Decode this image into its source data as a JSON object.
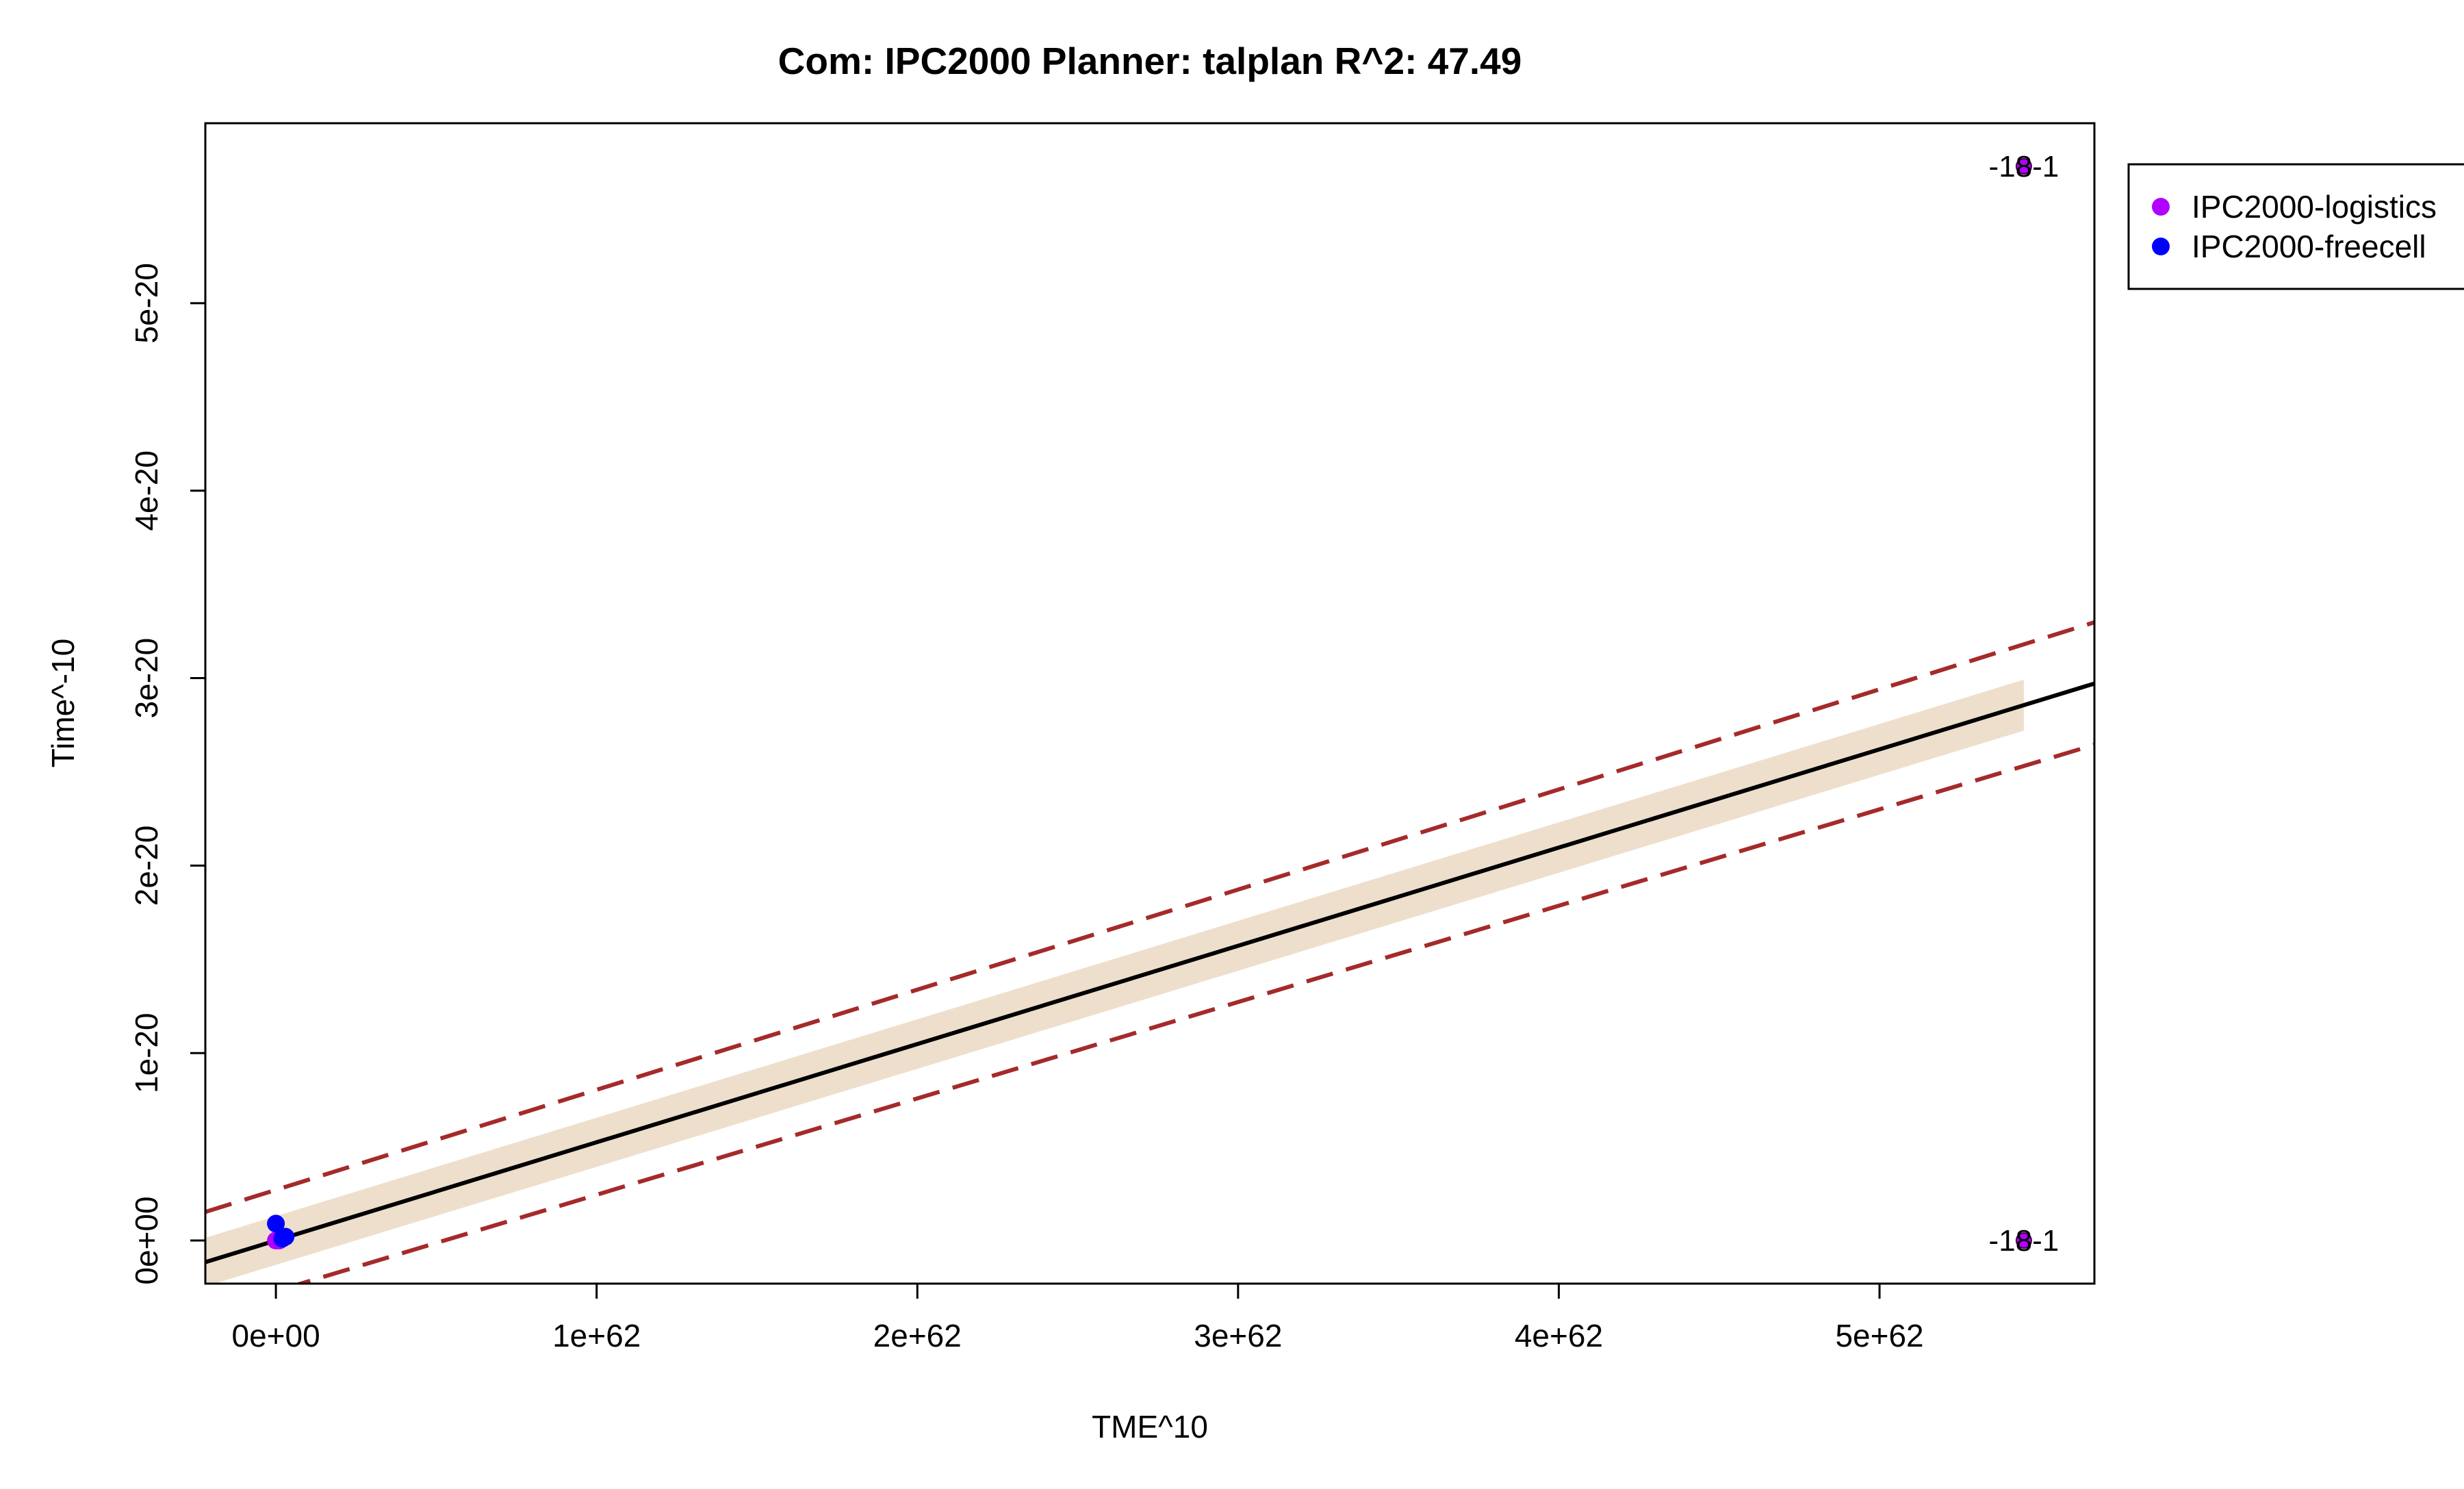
{
  "chart_data": {
    "type": "scatter",
    "title": "Com: IPC2000 Planner: talplan R^2: 47.49",
    "xlabel": "TME^10",
    "ylabel": "Time^-10",
    "xlim": [
      -2.2e+61,
      5.67e+62
    ],
    "ylim": [
      -2.3e-21,
      5.96e-20
    ],
    "x_ticks": [
      0,
      1e+62,
      2e+62,
      3e+62,
      4e+62,
      5e+62
    ],
    "x_tick_labels": [
      "0e+00",
      "1e+62",
      "2e+62",
      "3e+62",
      "4e+62",
      "5e+62"
    ],
    "y_ticks": [
      0,
      1e-20,
      2e-20,
      3e-20,
      4e-20,
      5e-20
    ],
    "y_tick_labels": [
      "0e+00",
      "1e-20",
      "2e-20",
      "3e-20",
      "4e-20",
      "5e-20"
    ],
    "series": [
      {
        "name": "IPC2000-logistics",
        "color": "#b000ff",
        "points": [
          {
            "x": 0,
            "y": 0
          },
          {
            "x": 1e+60,
            "y": 0
          },
          {
            "x": 5.45e+62,
            "y": 5.73e-20,
            "label": "-18-1"
          },
          {
            "x": 5.45e+62,
            "y": 0,
            "label": "-18-1"
          }
        ]
      },
      {
        "name": "IPC2000-freecell",
        "color": "#0000ff",
        "points": [
          {
            "x": 0,
            "y": 9e-22
          },
          {
            "x": 3e+60,
            "y": 2e-22
          },
          {
            "x": 2e+60,
            "y": 1e-22
          }
        ]
      }
    ],
    "fit_line": {
      "color": "#000000",
      "intercept": 0,
      "slope": 5.24e-83
    },
    "prediction_band": {
      "color": "#a52a2a",
      "intercept_offset": 2.7e-21,
      "slope_offset": 1e-84
    },
    "confidence_band": {
      "color": "#eedfcc",
      "x_range": [
        -2.2e+61,
        5.45e+62
      ],
      "intercept_offset": 1.3e-21,
      "slope_offset": 1.1e-85
    },
    "legend": {
      "position": "top-right",
      "entries": [
        {
          "label": "IPC2000-logistics",
          "color": "#b000ff"
        },
        {
          "label": "IPC2000-freecell",
          "color": "#0000ff"
        }
      ]
    },
    "grid": false
  }
}
